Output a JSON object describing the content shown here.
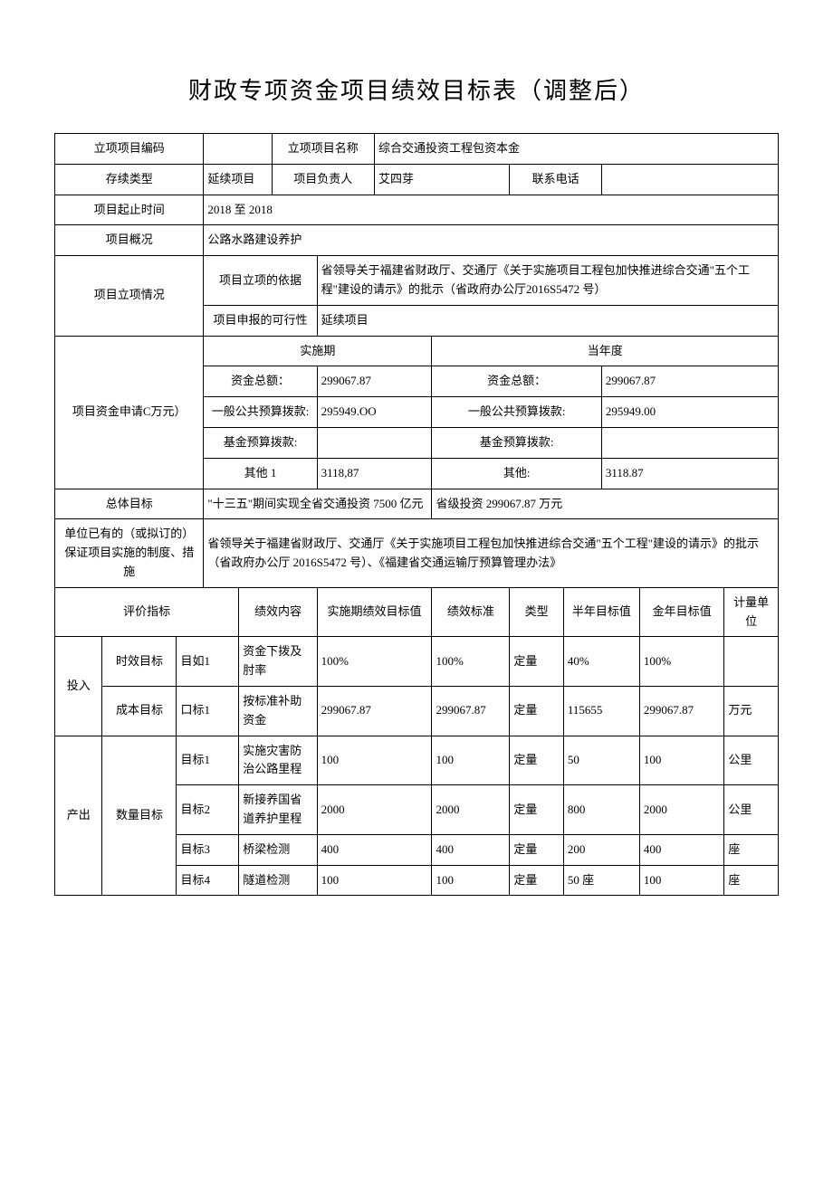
{
  "title": "财政专项资金项目绩效目标表（调整后）",
  "header": {
    "project_code_label": "立项项目编码",
    "project_code": "",
    "project_name_label": "立项项目名称",
    "project_name": "综合交通投资工程包资本金",
    "continuity_label": "存续类型",
    "continuity": "延续项目",
    "manager_label": "项目负责人",
    "manager": "艾四芽",
    "phone_label": "联系电话",
    "phone": "",
    "period_label": "项目起止时间",
    "period": "2018 至 2018",
    "overview_label": "项目概况",
    "overview": "公路水路建设养护"
  },
  "approval": {
    "section_label": "项目立项情况",
    "basis_label": "项目立项的依据",
    "basis": "省领导关于福建省财政厅、交通厅《关于实施项目工程包加快推进综合交通\"五个工程\"建设的请示》的批示（省政府办公厅2016S5472 号）",
    "feasibility_label": "项目申报的可行性",
    "feasibility": "延续项目"
  },
  "funds": {
    "section_label": "项目资金申请C万元）",
    "impl_period_label": "实施期",
    "current_year_label": "当年度",
    "total_label": "资金总额：",
    "total_impl": "299067.87",
    "total_year": "299067.87",
    "budget_label": "一般公共预算拨款:",
    "budget_impl": "295949.OO",
    "budget_year": "295949.00",
    "fund_label": "基金预算拨款:",
    "fund_impl": "",
    "fund_year": "",
    "other_label_1": "其他 1",
    "other_label_2": "其他:",
    "other_impl": "3118,87",
    "other_year": "3118.87"
  },
  "goals": {
    "overall_label": "总体目标",
    "overall_1": "\"十三五\"期间实现全省交通投资 7500 亿元",
    "overall_2": "省级投资 299067.87 万元",
    "measures_label": "单位已有的（或拟订的）保证项目实施的制度、措施",
    "measures": "省领导关于福建省财政厅、交通厅《关于实施项目工程包加快推进综合交通\"五个工程\"建设的请示》的批示（省政府办公厅 2016S5472 号）、《福建省交通运输厅预算管理办法》"
  },
  "indicators": {
    "eval_label": "评价指标",
    "content_label": "绩效内容",
    "impl_target_label": "实施期绩效目标值",
    "standard_label": "绩效标准",
    "type_label": "类型",
    "half_year_label": "半年目标值",
    "full_year_label": "金年目标值",
    "unit_label": "计量单位",
    "input_label": "投入",
    "output_label": "产出",
    "time_goal_label": "时效目标",
    "cost_goal_label": "成本目标",
    "qty_goal_label": "数量目标",
    "rows": [
      {
        "tag": "目如1",
        "content": "资金下拨及肘率",
        "impl": "100%",
        "std": "100%",
        "type": "定量",
        "half": "40%",
        "full": "100%",
        "unit": ""
      },
      {
        "tag": "口标1",
        "content": "按标准补助资金",
        "impl": "299067.87",
        "std": "299067.87",
        "type": "定量",
        "half": "115655",
        "full": "299067.87",
        "unit": "万元"
      },
      {
        "tag": "目标1",
        "content": "实施灾害防治公路里程",
        "impl": "100",
        "std": "100",
        "type": "定量",
        "half": "50",
        "full": "100",
        "unit": "公里"
      },
      {
        "tag": "目标2",
        "content": "新接养国省道养护里程",
        "impl": "2000",
        "std": "2000",
        "type": "定量",
        "half": "800",
        "full": "2000",
        "unit": "公里"
      },
      {
        "tag": "目标3",
        "content": "桥梁检测",
        "impl": "400",
        "std": "400",
        "type": "定量",
        "half": "200",
        "full": "400",
        "unit": "座"
      },
      {
        "tag": "目标4",
        "content": "隧道检测",
        "impl": "100",
        "std": "100",
        "type": "定量",
        "half": "50 座",
        "full": "100",
        "unit": "座"
      }
    ]
  }
}
